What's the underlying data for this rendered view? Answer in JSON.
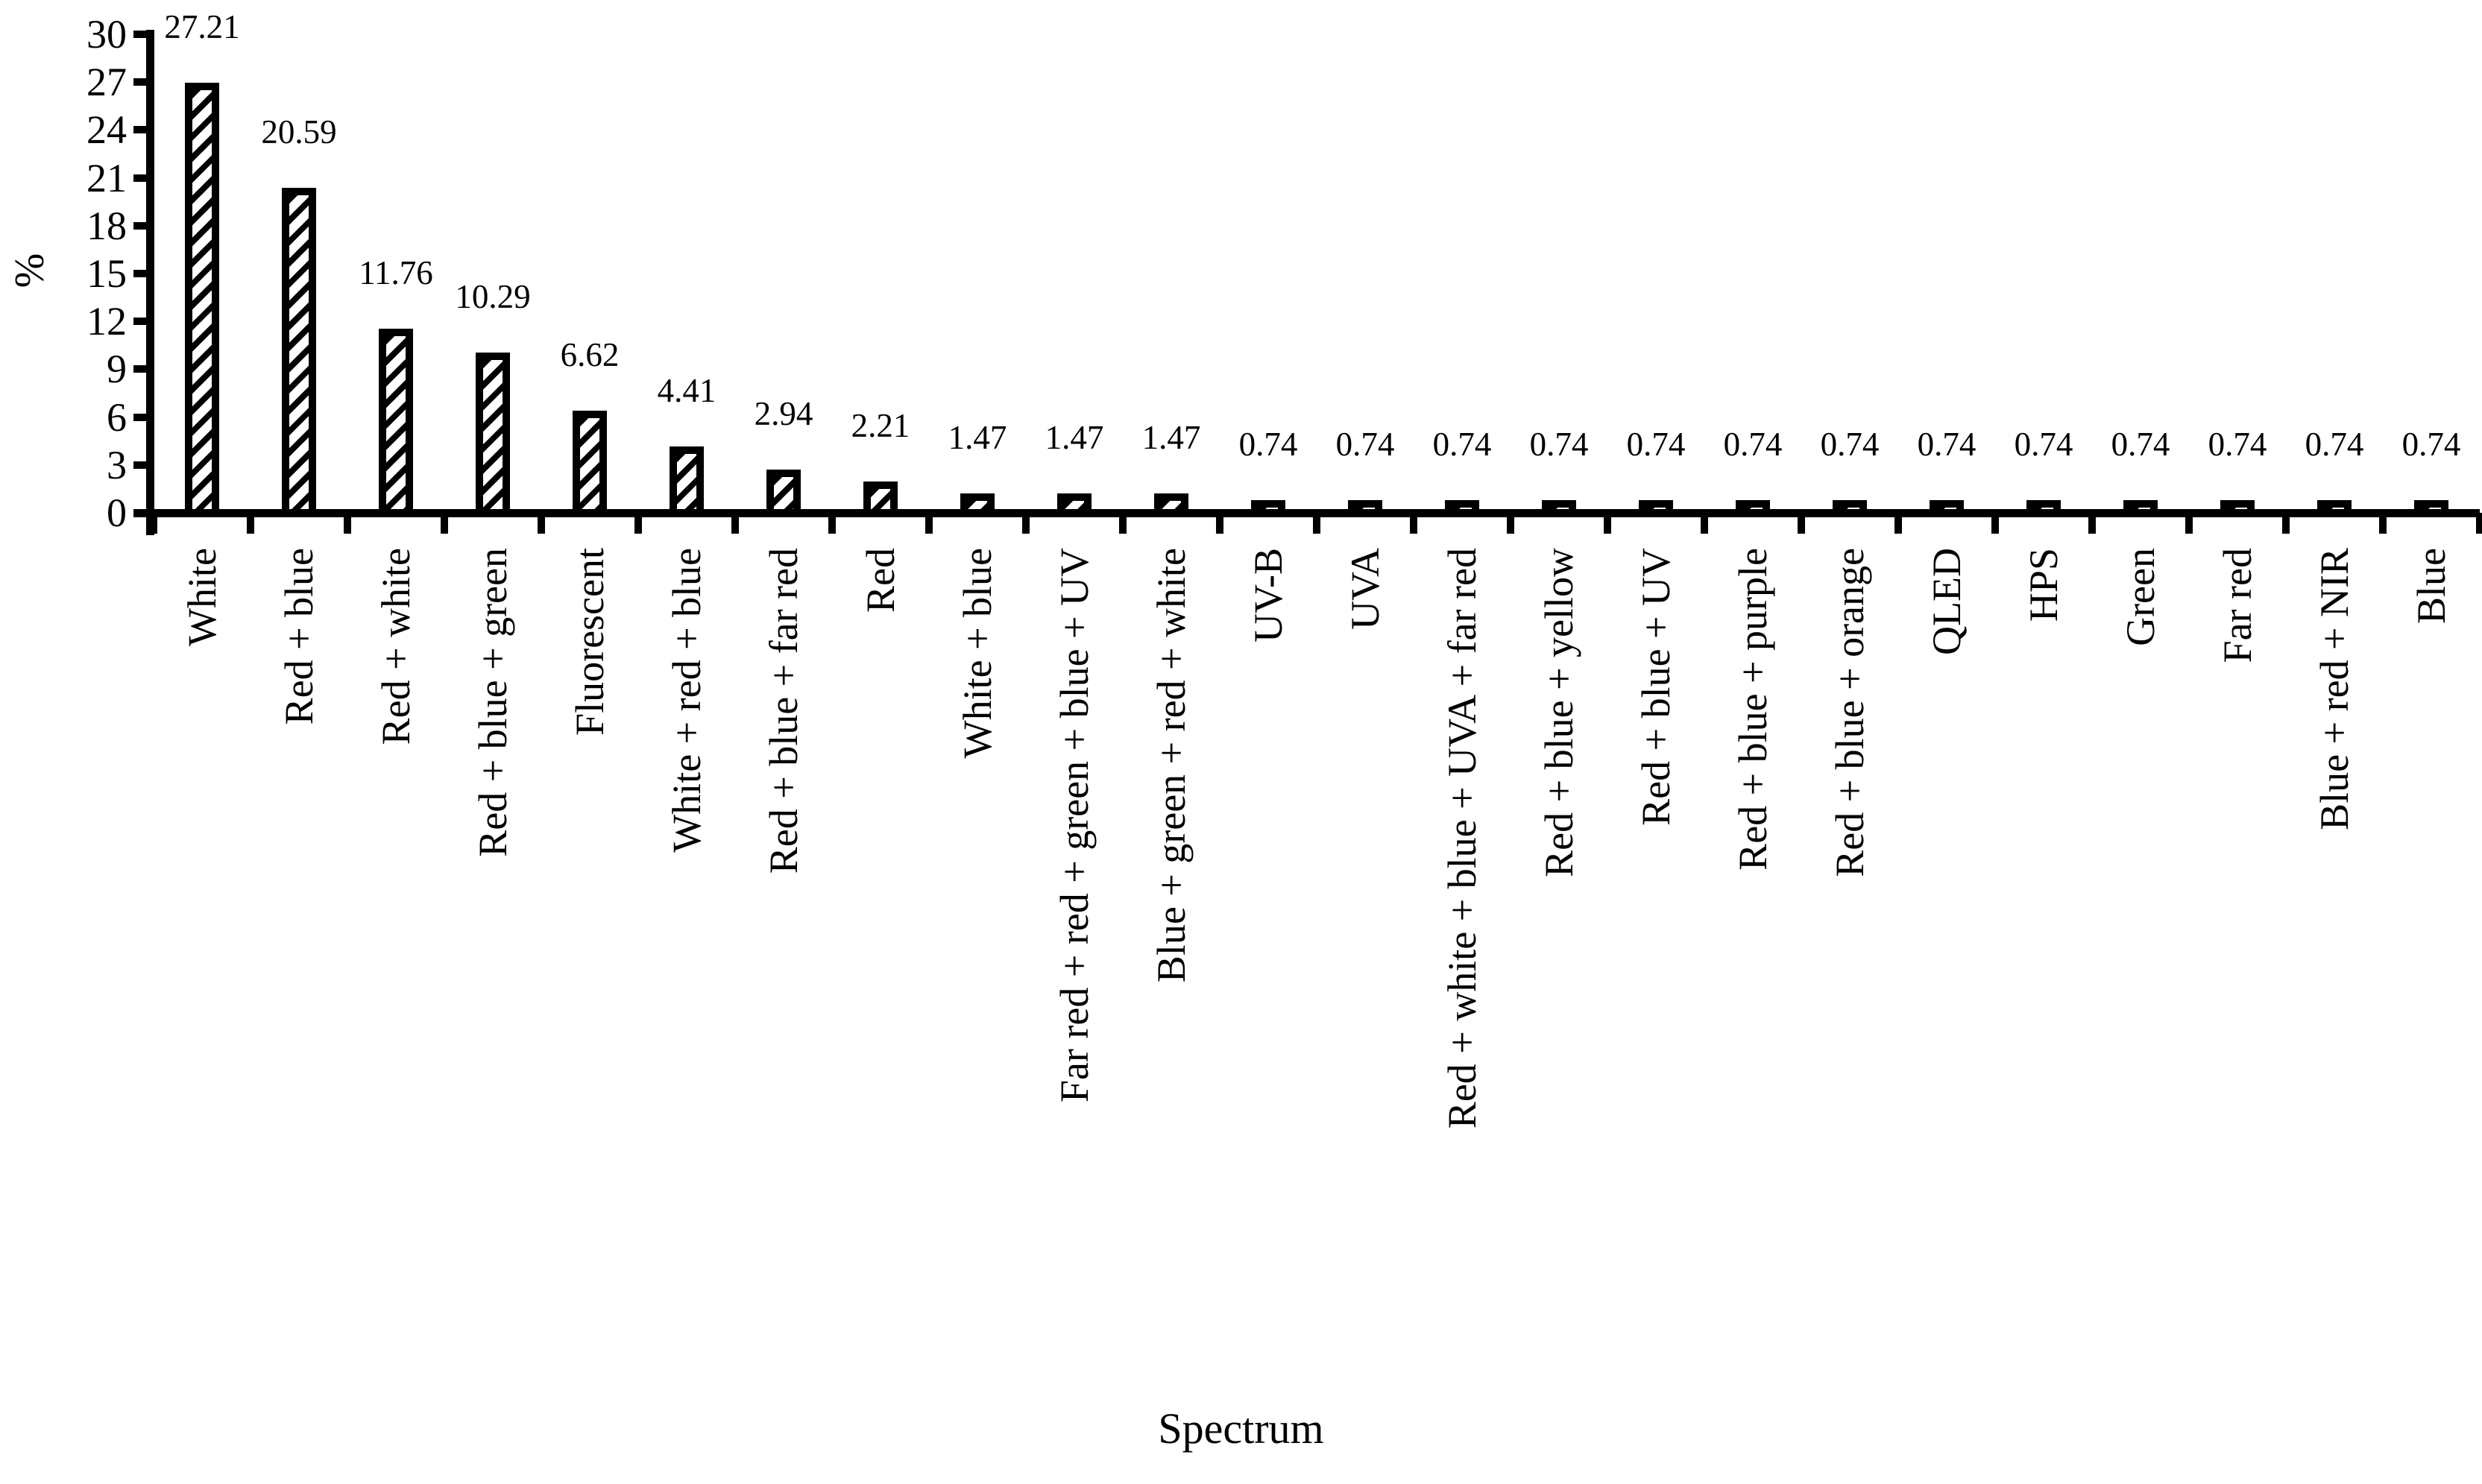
{
  "figure": {
    "background_color": "#ffffff",
    "ink_color": "#000000"
  },
  "chart_data": {
    "type": "bar",
    "title": "",
    "xlabel": "Spectrum",
    "ylabel": "%",
    "categories": [
      "White",
      "Red + blue",
      "Red + white",
      "Red + blue + green",
      "Fluorescent",
      "White + red + blue",
      "Red + blue + far red",
      "Red",
      "White + blue",
      "Far red + red + green + blue + UV",
      "Blue + green + red + white",
      "UV-B",
      "UVA",
      "Red + white + blue + UVA + far red",
      "Red + blue + yellow",
      "Red + blue + UV",
      "Red + blue + purple",
      "Red + blue + orange",
      "QLED",
      "HPS",
      "Green",
      "Far red",
      "Blue + red + NIR",
      "Blue"
    ],
    "values": [
      27.21,
      20.59,
      11.76,
      10.29,
      6.62,
      4.41,
      2.94,
      2.21,
      1.47,
      1.47,
      1.47,
      0.74,
      0.74,
      0.74,
      0.74,
      0.74,
      0.74,
      0.74,
      0.74,
      0.74,
      0.74,
      0.74,
      0.74,
      0.74
    ],
    "value_labels": [
      "27.21",
      "20.59",
      "11.76",
      "10.29",
      "6.62",
      "4.41",
      "2.94",
      "2.21",
      "1.47",
      "1.47",
      "1.47",
      "0.74",
      "0.74",
      "0.74",
      "0.74",
      "0.74",
      "0.74",
      "0.74",
      "0.74",
      "0.74",
      "0.74",
      "0.74",
      "0.74",
      "0.74"
    ],
    "ylim": [
      0,
      30
    ],
    "yticks": [
      0,
      3,
      6,
      9,
      12,
      15,
      18,
      21,
      24,
      27,
      30
    ],
    "grid": false,
    "legend": "none",
    "bar_style": {
      "fill_pattern": "diagonal-hatch",
      "hatch_direction": "bottom-left-to-top-right",
      "hatch_color": "#000000",
      "fill_background": "#ffffff",
      "border_color": "#000000"
    },
    "category_label_rotation": "vertical-bottom-to-top"
  }
}
